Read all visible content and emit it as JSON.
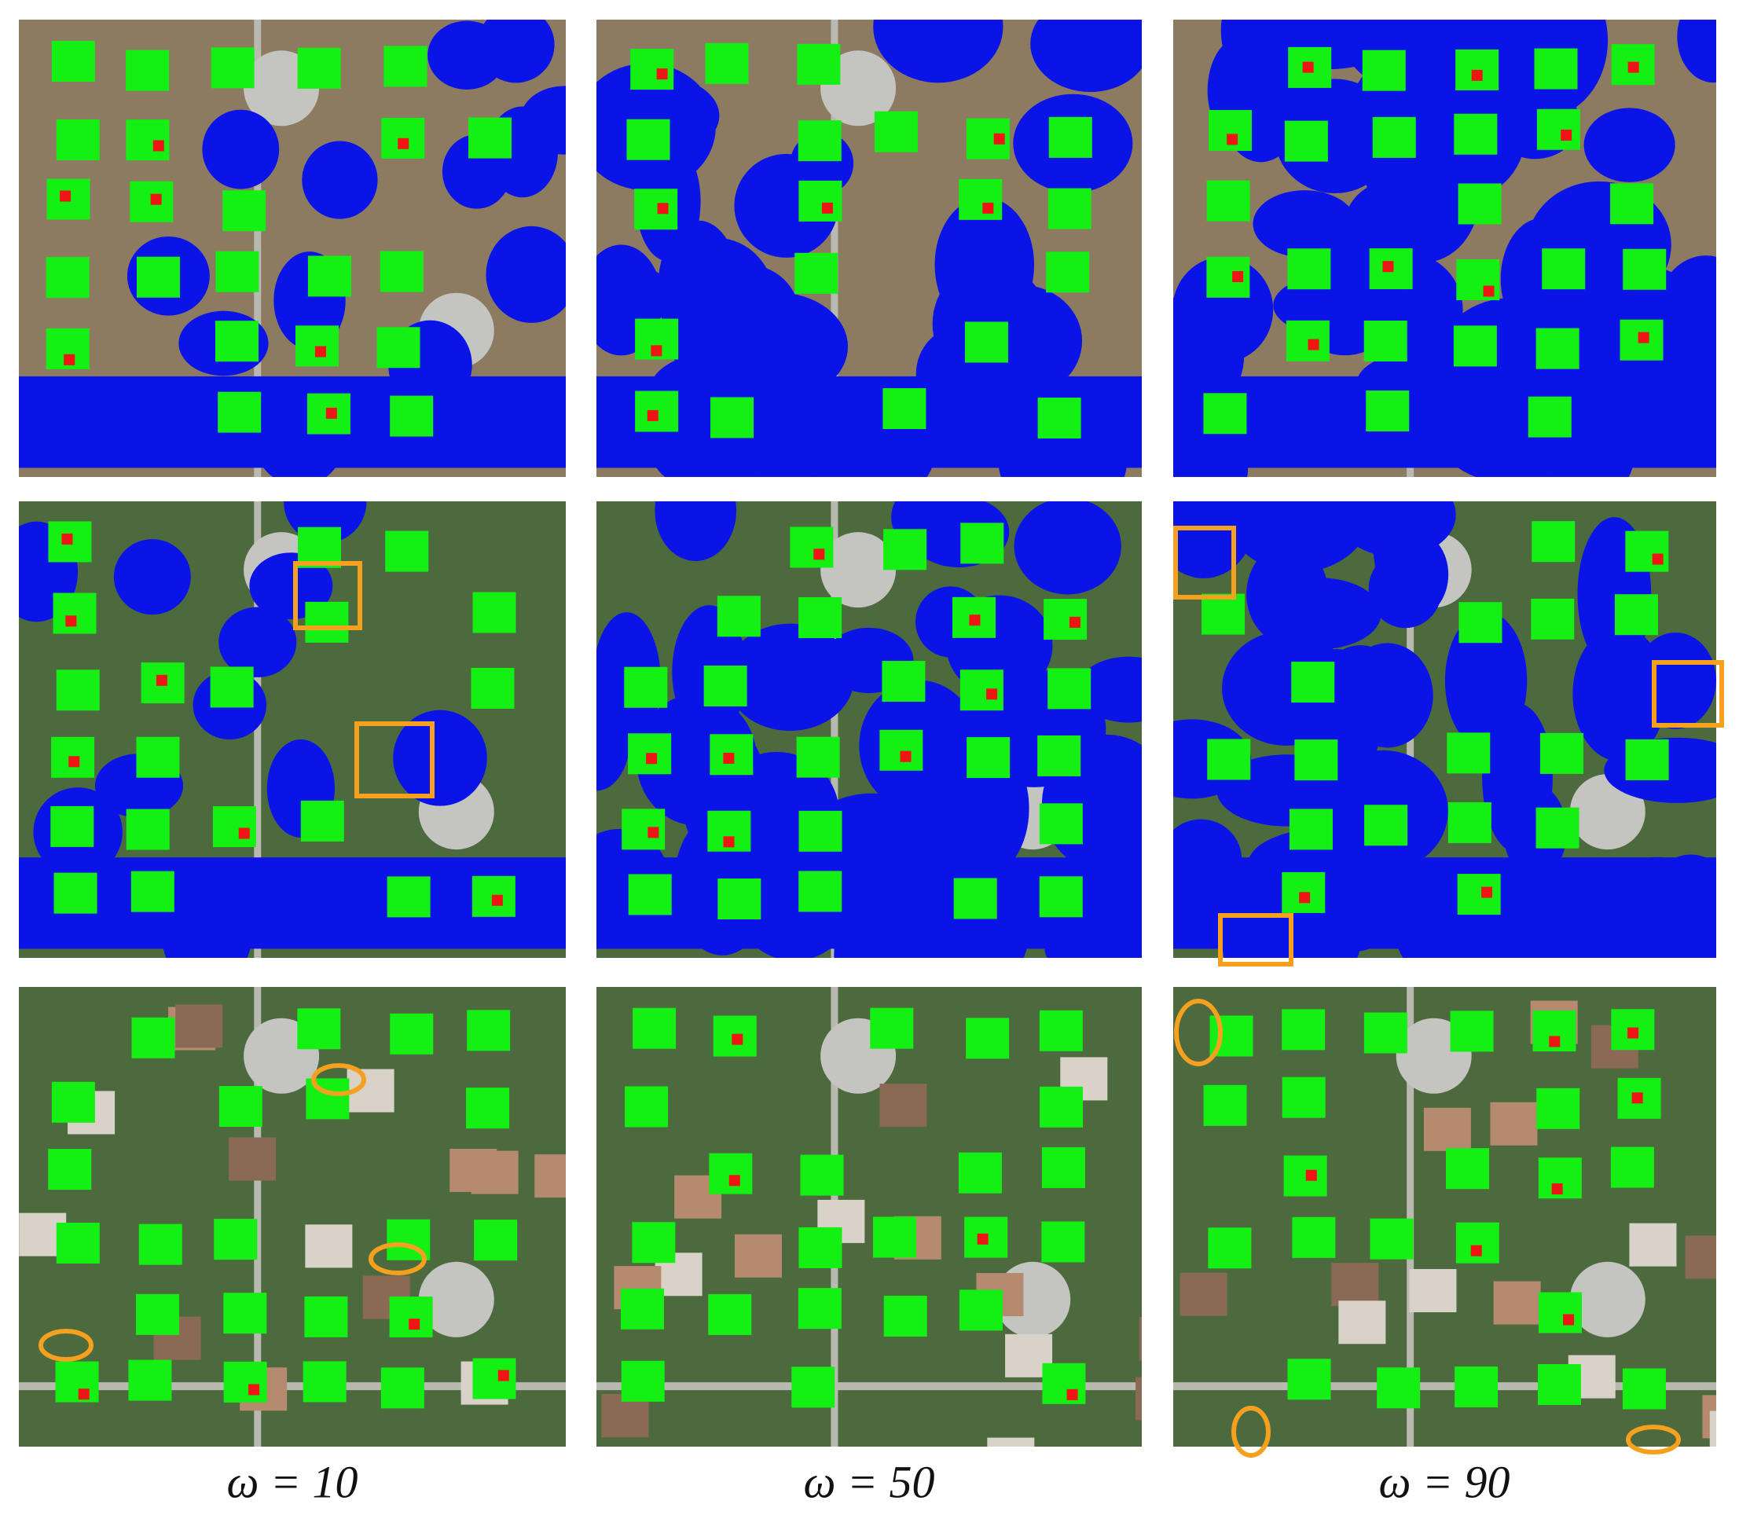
{
  "captions": [
    "ω = 10",
    "ω = 50",
    "ω = 90"
  ]
}
